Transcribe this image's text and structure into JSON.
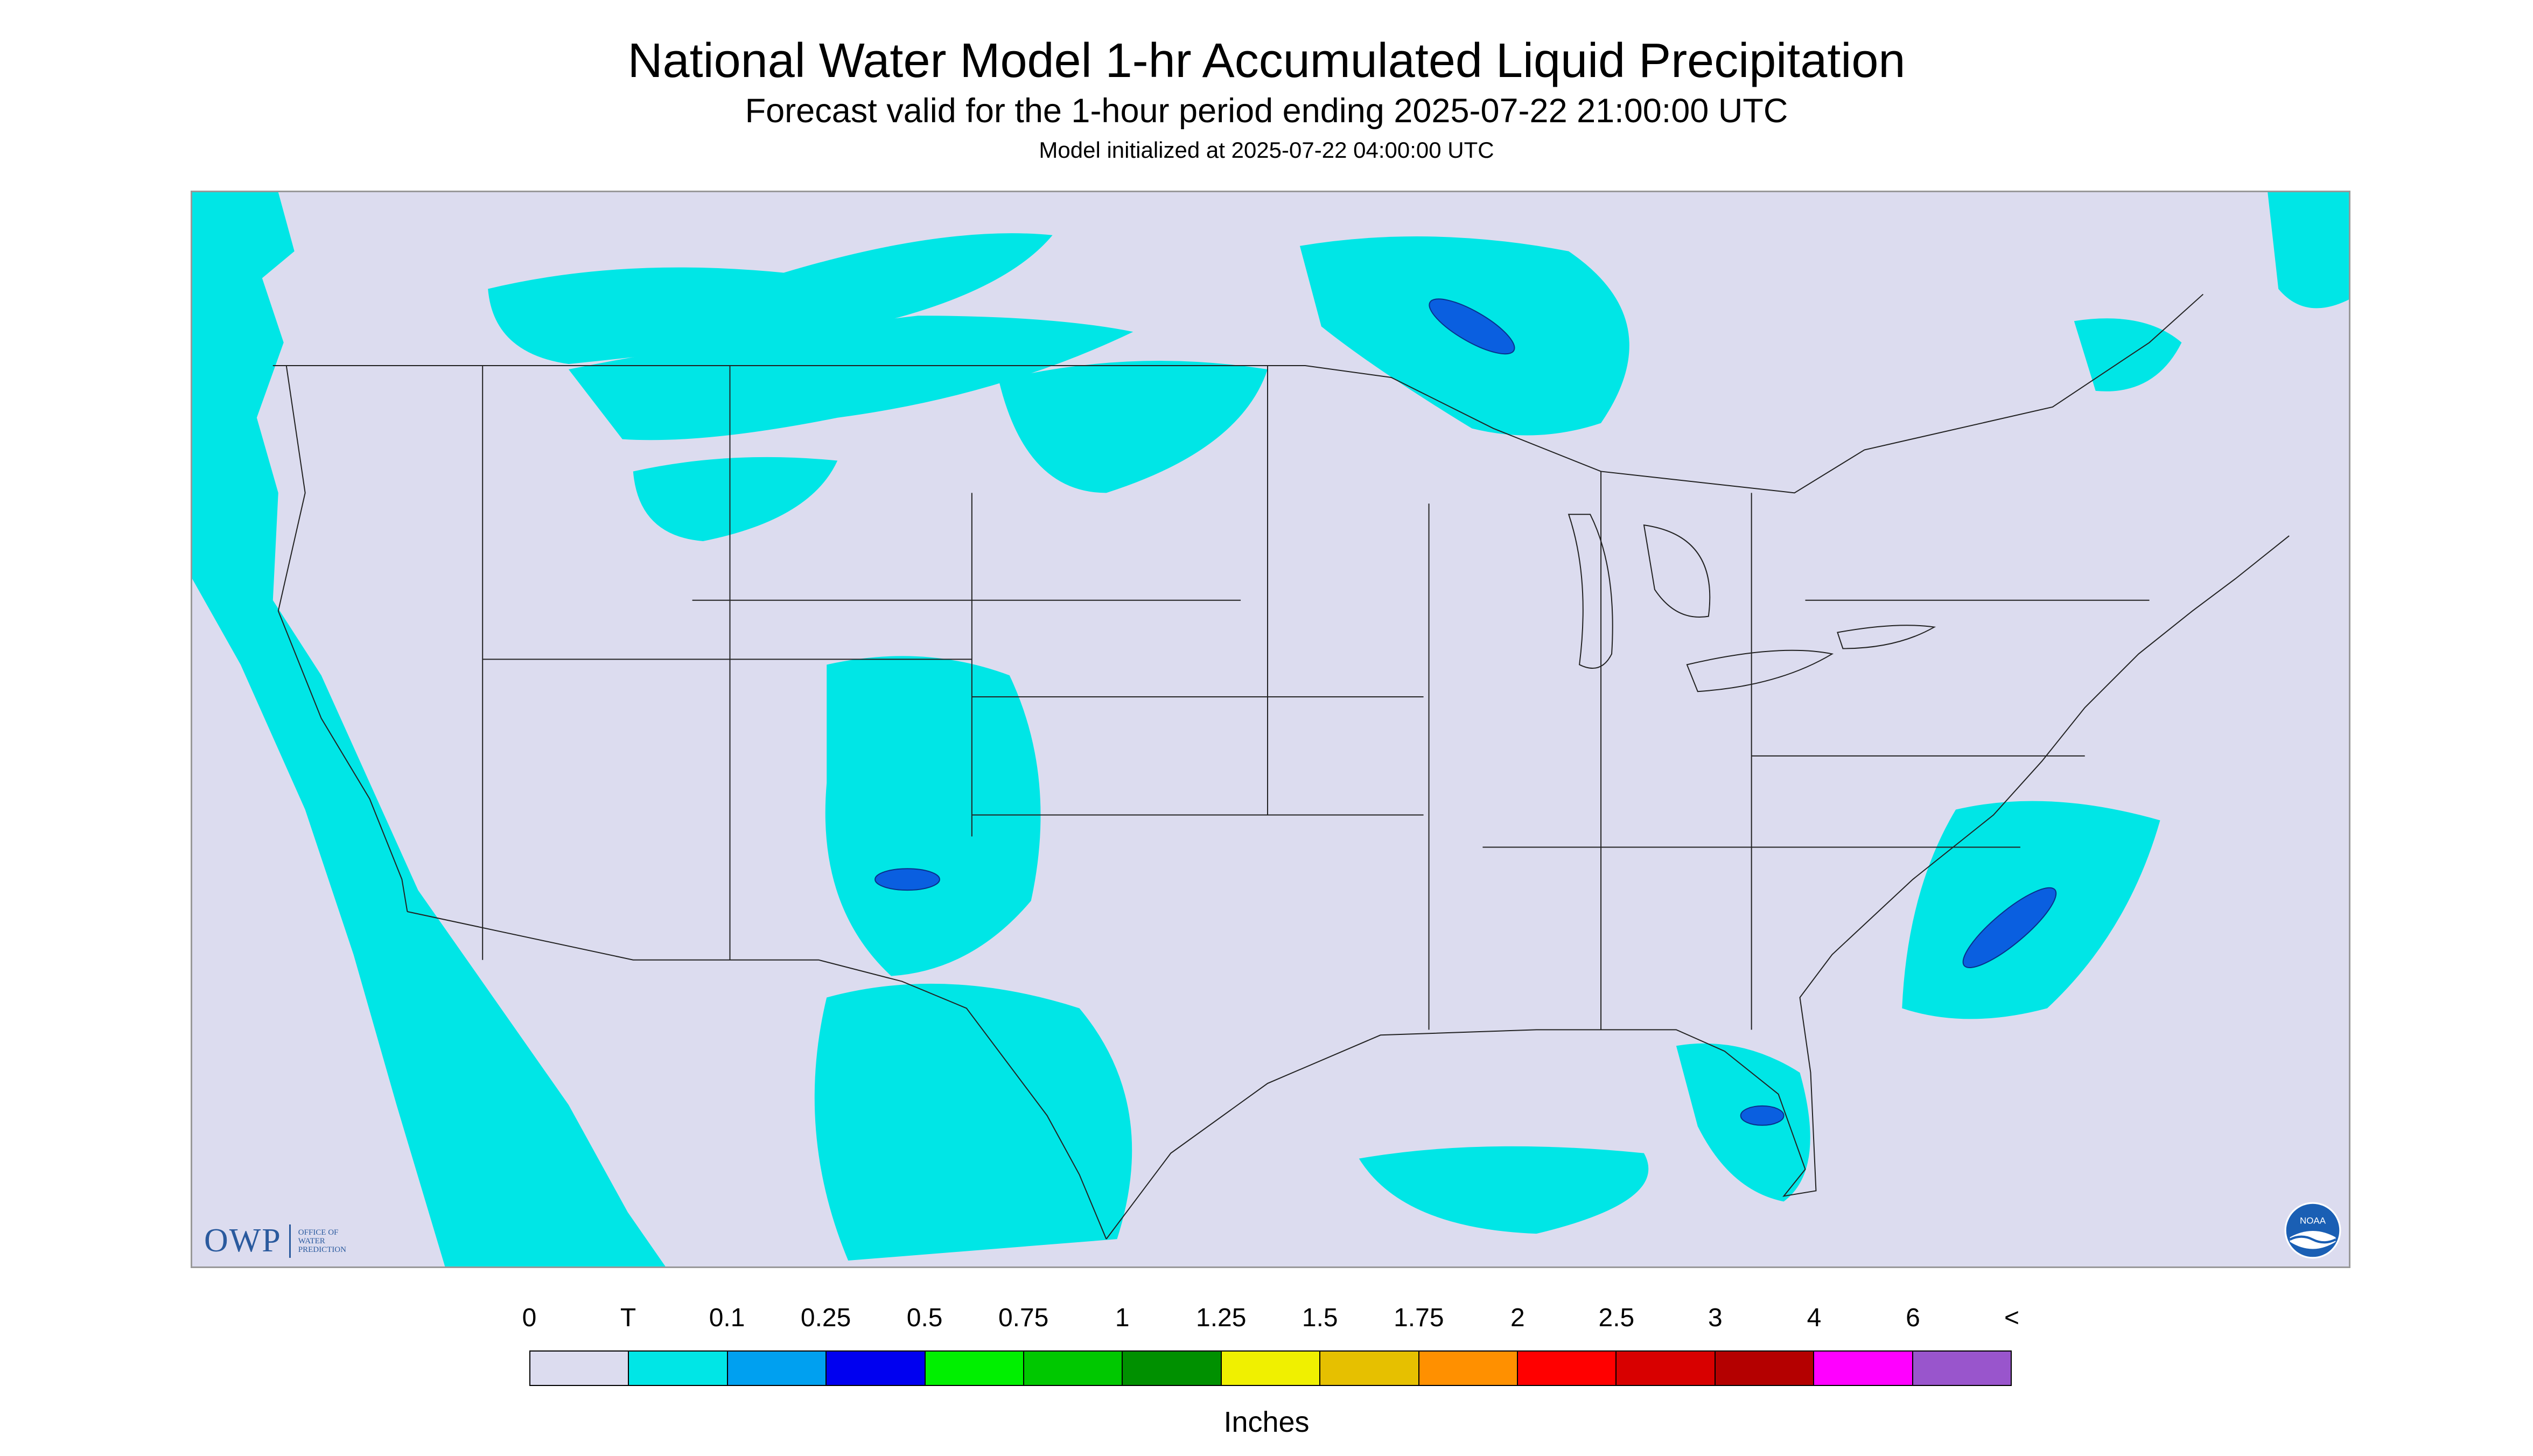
{
  "header": {
    "title": "National Water Model 1-hr Accumulated Liquid Precipitation",
    "subtitle": "Forecast valid for the 1-hour period ending 2025-07-22 21:00:00 UTC",
    "init_line": "Model initialized at 2025-07-22 04:00:00 UTC"
  },
  "logos": {
    "owp_mark": "OWP",
    "owp_line1": "Office of",
    "owp_line2": "Water",
    "owp_line3": "Prediction",
    "noaa_text": "NOAA"
  },
  "legend": {
    "labels": [
      "0",
      "T",
      "0.1",
      "0.25",
      "0.5",
      "0.75",
      "1",
      "1.25",
      "1.5",
      "1.75",
      "2",
      "2.5",
      "3",
      "4",
      "6",
      "<"
    ],
    "colors": [
      "#dcdcef",
      "#00e6e6",
      "#00a0f0",
      "#0000f0",
      "#00f000",
      "#00c800",
      "#009000",
      "#f0f000",
      "#e6c000",
      "#ff9000",
      "#ff0000",
      "#d80000",
      "#b40000",
      "#ff00ff",
      "#9955cc"
    ],
    "units": "Inches"
  },
  "colors": {
    "map_background": "#dcdcef",
    "precip_trace": "#00e6e6",
    "border_lines": "#222222",
    "outside_domain": "#dcdcef"
  }
}
